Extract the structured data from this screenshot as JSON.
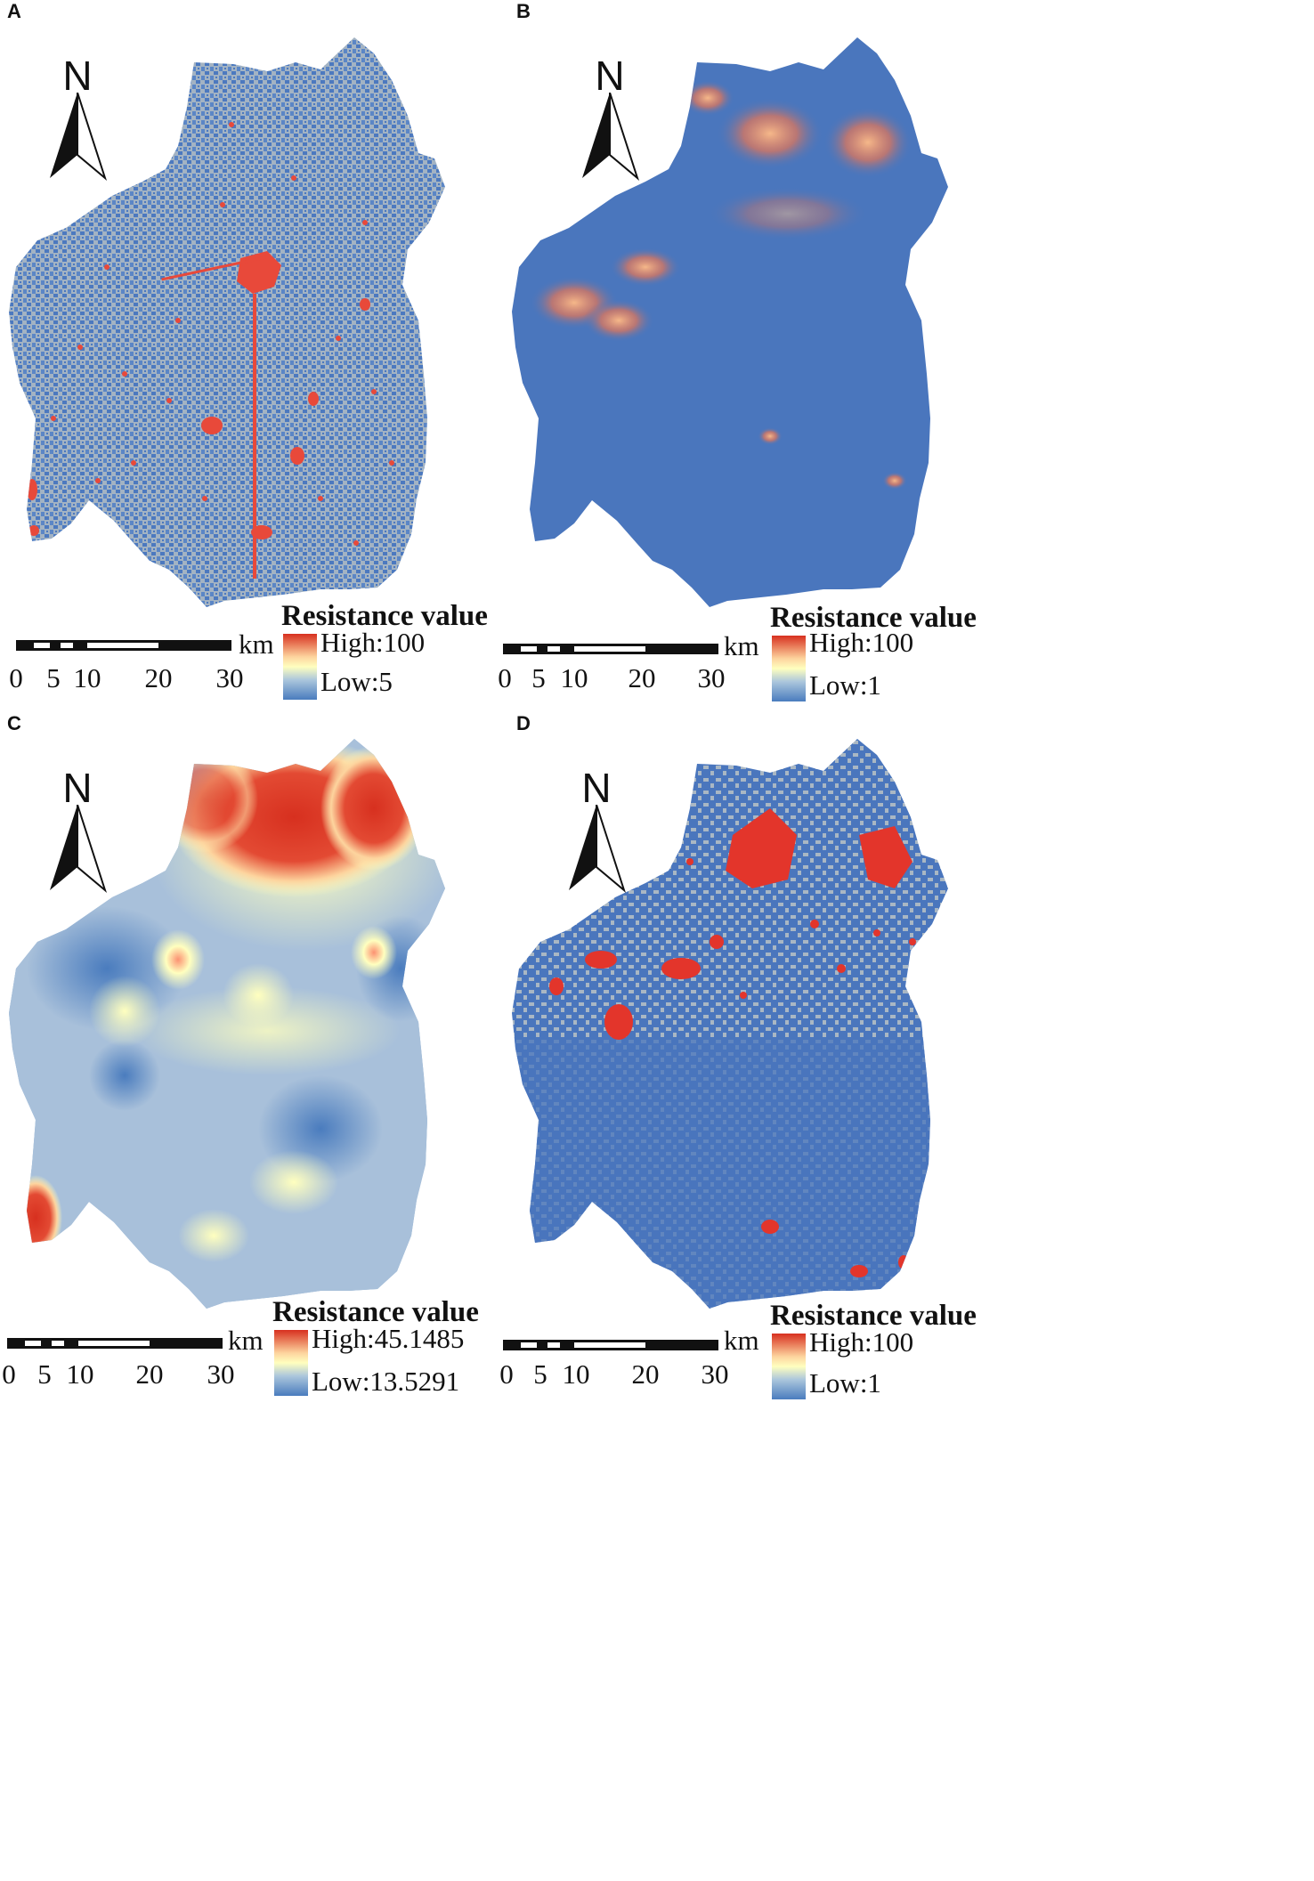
{
  "panels": [
    {
      "id": "A",
      "legend_title": "Resistance value",
      "high": "High:100",
      "low": "Low:5"
    },
    {
      "id": "B",
      "legend_title": "Resistance value",
      "high": "High:100",
      "low": "Low:1"
    },
    {
      "id": "C",
      "legend_title": "Resistance value",
      "high": "High:45.1485",
      "low": "Low:13.5291"
    },
    {
      "id": "D",
      "legend_title": "Resistance value",
      "high": "High:100",
      "low": "Low:1"
    }
  ],
  "north_label": "N",
  "scale": {
    "unit": "km",
    "ticks": [
      "0",
      "5",
      "10",
      "20",
      "30"
    ]
  },
  "colors": {
    "high": "#d7301f",
    "mid": "#ffffbf",
    "low": "#4a7cbe",
    "gray": "#a7b4c2"
  }
}
